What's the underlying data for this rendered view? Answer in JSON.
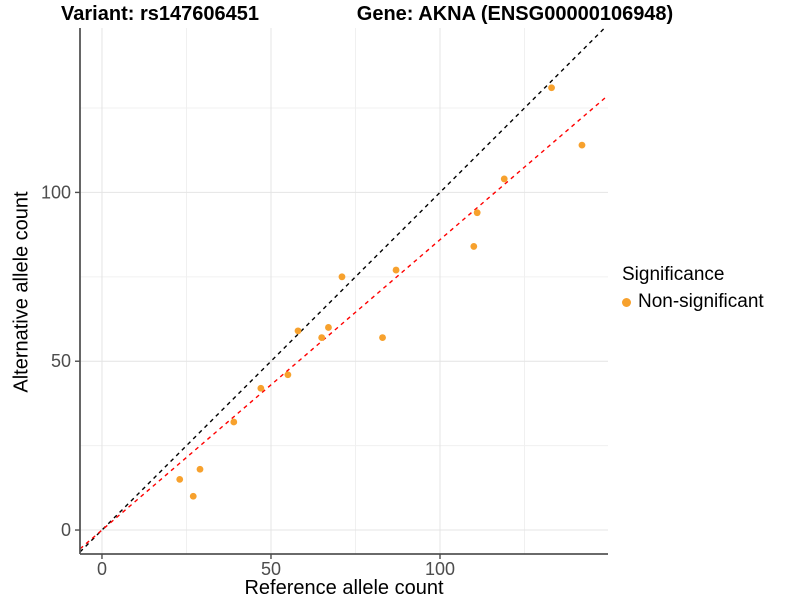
{
  "titles": {
    "variant": "Variant: rs147606451",
    "gene": "Gene: AKNA (ENSG00000106948)"
  },
  "chart_data": {
    "type": "scatter",
    "xlabel": "Reference allele count",
    "ylabel": "Alternative allele count",
    "xlim": [
      -6.5,
      149.7
    ],
    "ylim": [
      -7.1,
      148.7
    ],
    "x_ticks": [
      0,
      50,
      100
    ],
    "y_ticks": [
      0,
      50,
      100
    ],
    "x_minor_ticks": [
      25,
      75,
      125
    ],
    "y_minor_ticks": [
      25,
      75,
      125
    ],
    "grid": true,
    "legend": {
      "title": "Significance",
      "position": "right",
      "items": [
        {
          "label": "Non-significant",
          "color": "#F7A12D"
        }
      ]
    },
    "series": [
      {
        "name": "Non-significant",
        "color": "#F7A12D",
        "points": [
          [
            23,
            15
          ],
          [
            27,
            10
          ],
          [
            29,
            18
          ],
          [
            39,
            32
          ],
          [
            47,
            42
          ],
          [
            55,
            46
          ],
          [
            58,
            59
          ],
          [
            65,
            57
          ],
          [
            67,
            60
          ],
          [
            71,
            75
          ],
          [
            83,
            57
          ],
          [
            87,
            77
          ],
          [
            110,
            84
          ],
          [
            111,
            94
          ],
          [
            119,
            104
          ],
          [
            133,
            131
          ],
          [
            142,
            114
          ]
        ]
      }
    ],
    "lines": [
      {
        "name": "identity-line",
        "slope": 1,
        "intercept": 0,
        "color": "#000000",
        "dash": [
          4,
          4
        ]
      },
      {
        "name": "regression-line",
        "slope": 0.86,
        "intercept": 0,
        "color": "#FF0000",
        "dash": [
          4,
          4
        ]
      }
    ],
    "style": {
      "grid_major_color": "#E4E4E4",
      "grid_minor_color": "#F0F0F0",
      "axis_color": "#555555",
      "tick_color": "#4d4d4d",
      "tick_label_color": "#4d4d4d",
      "background": "#ffffff"
    }
  }
}
